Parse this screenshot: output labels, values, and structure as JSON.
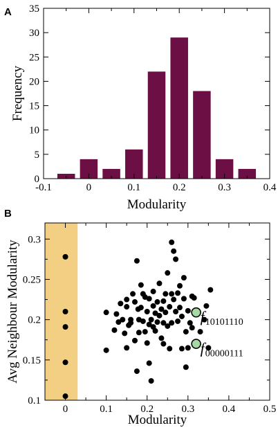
{
  "chart_data": [
    {
      "panel": "A",
      "type": "bar",
      "xlabel": "Modularity",
      "ylabel": "Frequency",
      "xlim": [
        -0.1,
        0.4
      ],
      "ylim": [
        0,
        35
      ],
      "xticks": [
        -0.1,
        0,
        0.1,
        0.2,
        0.3,
        0.4
      ],
      "xtick_labels": [
        "-0.1",
        "0",
        "0.1",
        "0.2",
        "0.3",
        "0.4"
      ],
      "yticks": [
        0,
        5,
        10,
        15,
        20,
        25,
        30,
        35
      ],
      "ytick_labels": [
        "0",
        "5",
        "10",
        "15",
        "20",
        "25",
        "30",
        "35"
      ],
      "bar_color": "#6b0f44",
      "x": [
        -0.05,
        0,
        0.05,
        0.1,
        0.15,
        0.2,
        0.25,
        0.3,
        0.35
      ],
      "values": [
        1,
        4,
        2,
        6,
        22,
        29,
        18,
        4,
        2
      ]
    },
    {
      "panel": "B",
      "type": "scatter",
      "xlabel": "Modularity",
      "ylabel": "Avg Neighbour Modularity",
      "xlim": [
        -0.05,
        0.5
      ],
      "ylim": [
        0.1,
        0.32
      ],
      "xticks": [
        0,
        0.1,
        0.2,
        0.3,
        0.4,
        0.5
      ],
      "xtick_labels": [
        "0",
        "0.1",
        "0.2",
        "0.3",
        "0.4",
        "0.5"
      ],
      "yticks": [
        0.1,
        0.15,
        0.2,
        0.25,
        0.3
      ],
      "ytick_labels": [
        "0.1",
        "0.15",
        "0.2",
        "0.25",
        "0.3"
      ],
      "shaded_region": {
        "x": [
          -0.05,
          0.03
        ],
        "color": "#f3cf83"
      },
      "point_color": "#000000",
      "points": [
        [
          0,
          0.278
        ],
        [
          0,
          0.21
        ],
        [
          0,
          0.191
        ],
        [
          0,
          0.147
        ],
        [
          0,
          0.105
        ],
        [
          0.1,
          0.162
        ],
        [
          0.1,
          0.209
        ],
        [
          0.12,
          0.187
        ],
        [
          0.125,
          0.207
        ],
        [
          0.13,
          0.197
        ],
        [
          0.135,
          0.22
        ],
        [
          0.14,
          0.2
        ],
        [
          0.145,
          0.183
        ],
        [
          0.15,
          0.216
        ],
        [
          0.15,
          0.165
        ],
        [
          0.155,
          0.193
        ],
        [
          0.16,
          0.2
        ],
        [
          0.16,
          0.196
        ],
        [
          0.165,
          0.232
        ],
        [
          0.17,
          0.222
        ],
        [
          0.17,
          0.174
        ],
        [
          0.175,
          0.273
        ],
        [
          0.175,
          0.136
        ],
        [
          0.178,
          0.213
        ],
        [
          0.18,
          0.2
        ],
        [
          0.185,
          0.215
        ],
        [
          0.185,
          0.243
        ],
        [
          0.19,
          0.232
        ],
        [
          0.19,
          0.198
        ],
        [
          0.195,
          0.185
        ],
        [
          0.2,
          0.171
        ],
        [
          0.2,
          0.21
        ],
        [
          0.205,
          0.226
        ],
        [
          0.205,
          0.146
        ],
        [
          0.205,
          0.194
        ],
        [
          0.21,
          0.2
        ],
        [
          0.21,
          0.124
        ],
        [
          0.215,
          0.235
        ],
        [
          0.215,
          0.217
        ],
        [
          0.22,
          0.208
        ],
        [
          0.22,
          0.186
        ],
        [
          0.225,
          0.222
        ],
        [
          0.225,
          0.197
        ],
        [
          0.23,
          0.245
        ],
        [
          0.23,
          0.205
        ],
        [
          0.235,
          0.213
        ],
        [
          0.235,
          0.177
        ],
        [
          0.24,
          0.223
        ],
        [
          0.24,
          0.196
        ],
        [
          0.245,
          0.232
        ],
        [
          0.245,
          0.209
        ],
        [
          0.25,
          0.258
        ],
        [
          0.25,
          0.192
        ],
        [
          0.255,
          0.216
        ],
        [
          0.255,
          0.164
        ],
        [
          0.26,
          0.296
        ],
        [
          0.26,
          0.232
        ],
        [
          0.26,
          0.196
        ],
        [
          0.265,
          0.285
        ],
        [
          0.265,
          0.225
        ],
        [
          0.27,
          0.275
        ],
        [
          0.27,
          0.21
        ],
        [
          0.275,
          0.198
        ],
        [
          0.28,
          0.242
        ],
        [
          0.28,
          0.215
        ],
        [
          0.285,
          0.204
        ],
        [
          0.285,
          0.164
        ],
        [
          0.29,
          0.252
        ],
        [
          0.29,
          0.226
        ],
        [
          0.295,
          0.185
        ],
        [
          0.3,
          0.211
        ],
        [
          0.305,
          0.196
        ],
        [
          0.31,
          0.19
        ],
        [
          0.315,
          0.227
        ],
        [
          0.295,
          0.141
        ],
        [
          0.33,
          0.185
        ],
        [
          0.34,
          0.2
        ],
        [
          0.345,
          0.217
        ],
        [
          0.35,
          0.165
        ],
        [
          0.355,
          0.237
        ],
        [
          0.15,
          0.225
        ],
        [
          0.18,
          0.184
        ],
        [
          0.195,
          0.228
        ],
        [
          0.215,
          0.191
        ],
        [
          0.24,
          0.17
        ],
        [
          0.275,
          0.233
        ],
        [
          0.3,
          0.165
        ],
        [
          0.31,
          0.229
        ]
      ],
      "highlighted_points": [
        {
          "x": 0.32,
          "y": 0.209,
          "color": "#a6d9a3",
          "label_main": "f",
          "label_sub": "10101110"
        },
        {
          "x": 0.32,
          "y": 0.17,
          "color": "#a6d9a3",
          "label_main": "f",
          "label_sub": "00000111"
        }
      ]
    }
  ],
  "panel_labels": [
    "A",
    "B"
  ]
}
